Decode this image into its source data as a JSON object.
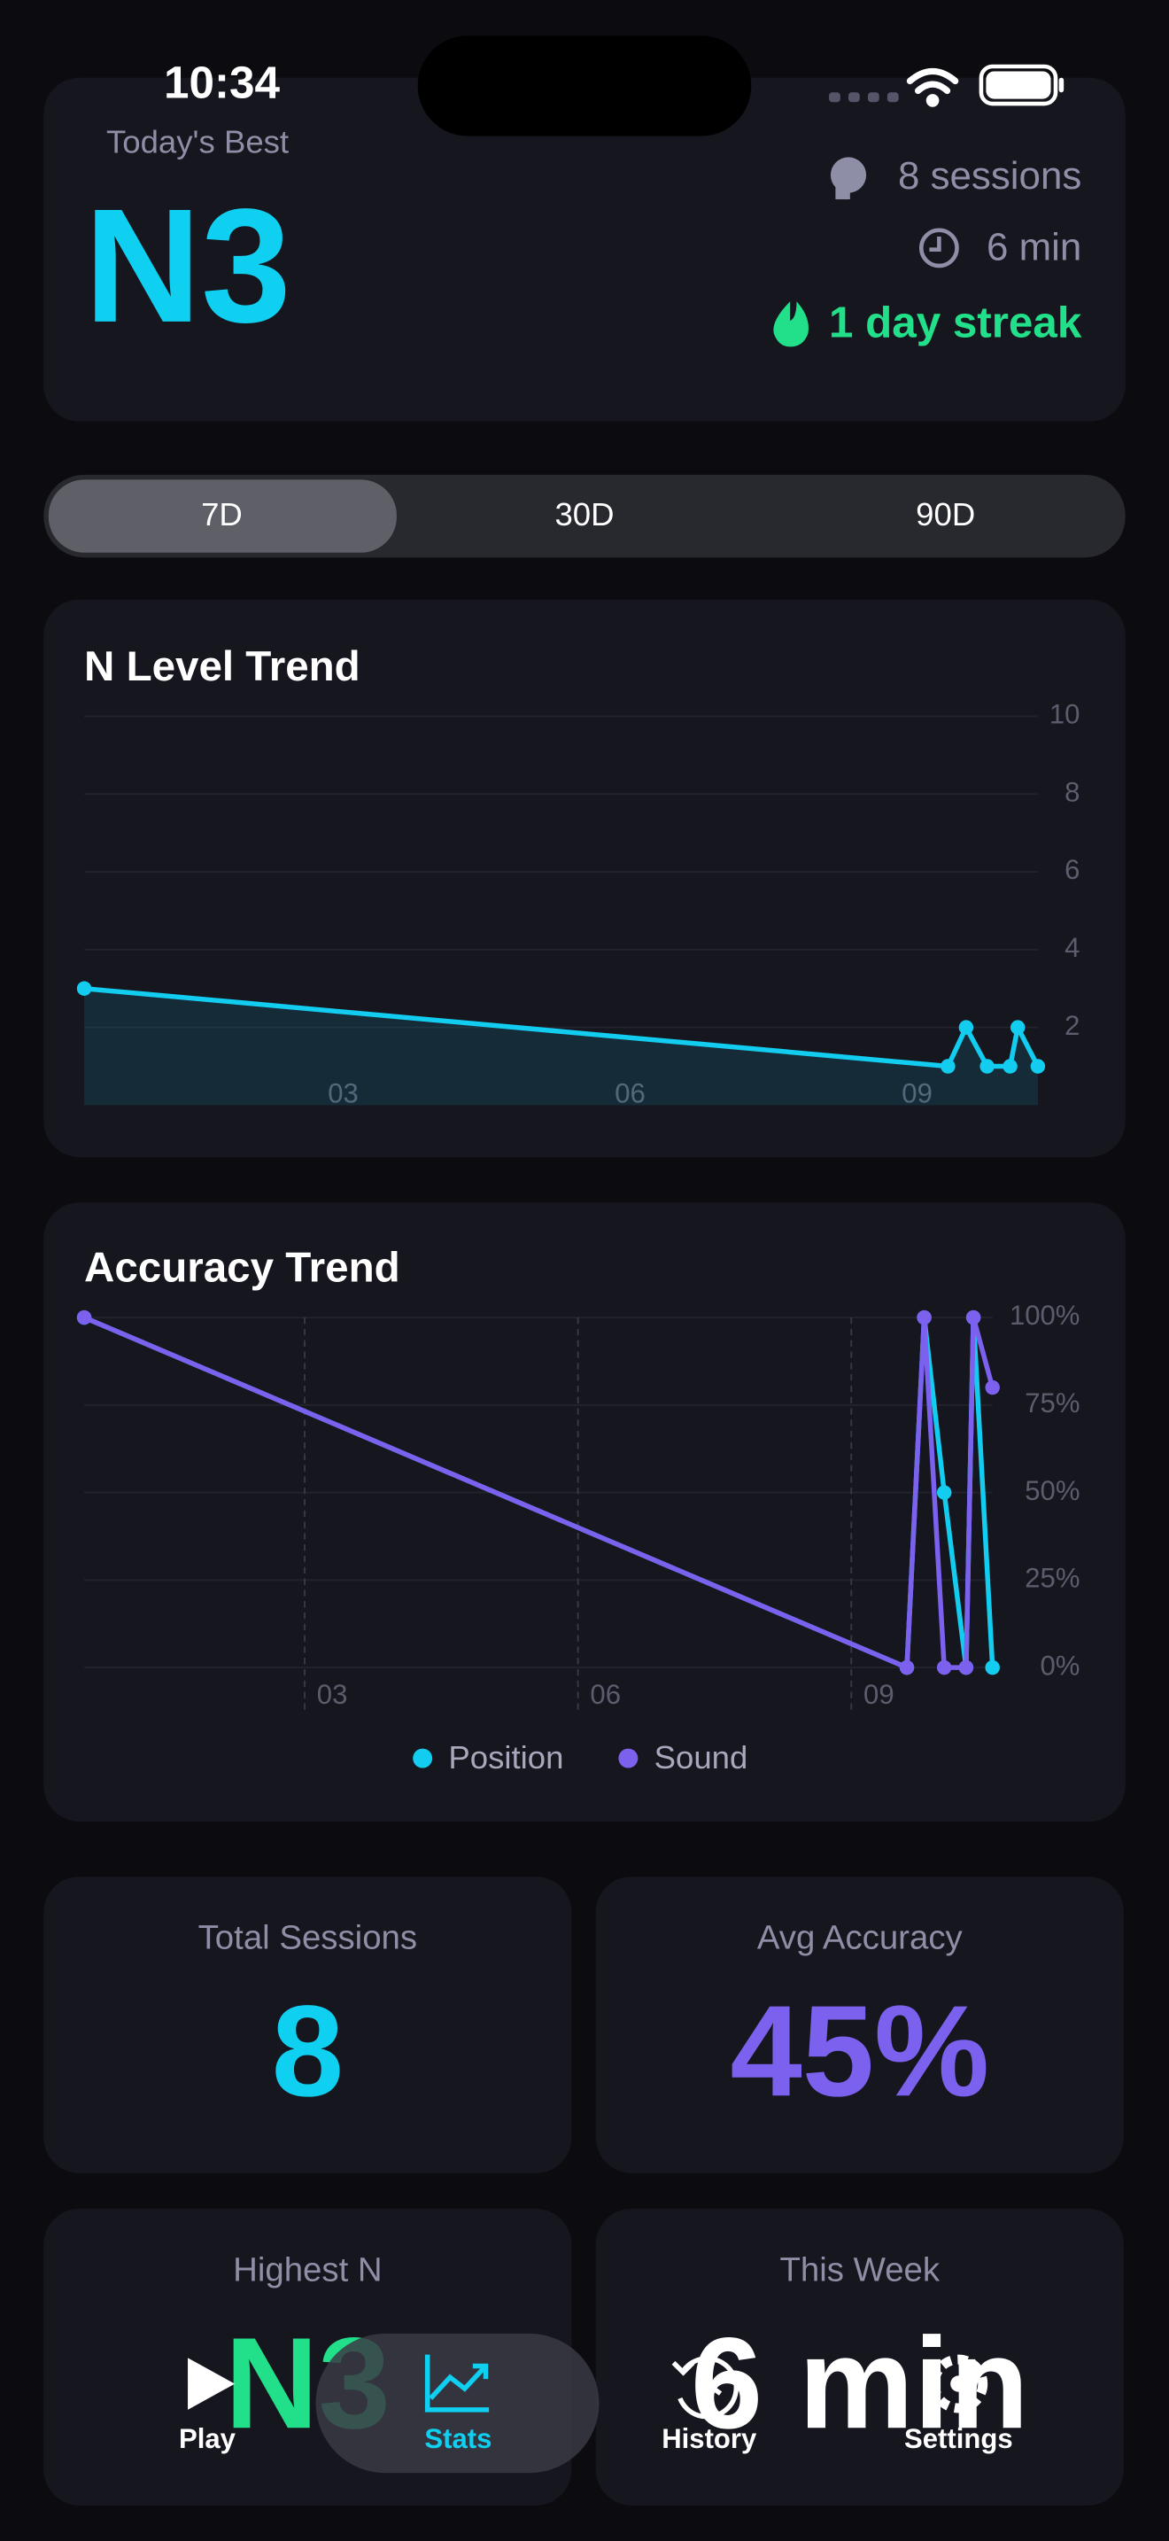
{
  "status_bar": {
    "time": "10:34"
  },
  "summary": {
    "label": "Today's Best",
    "best_level": "N3",
    "sessions": "8 sessions",
    "time": "6 min",
    "streak": "1 day streak"
  },
  "range_tabs": [
    "7D",
    "30D",
    "90D"
  ],
  "n_level_chart": {
    "type": "line",
    "title": "N Level Trend",
    "color": "#12cdef",
    "area": true,
    "x": [
      0.58,
      9.61,
      9.8,
      10.02,
      10.26,
      10.34,
      10.55
    ],
    "values": [
      3,
      1,
      2,
      1,
      1,
      2,
      1
    ],
    "xlim": [
      0.58,
      10.55
    ],
    "ylim": [
      0,
      10
    ],
    "xticks": [
      {
        "value": 3,
        "label": "03"
      },
      {
        "value": 6,
        "label": "06"
      },
      {
        "value": 9,
        "label": "09"
      }
    ],
    "yticks": [
      2,
      4,
      6,
      8,
      10
    ],
    "grid": true
  },
  "accuracy_chart": {
    "type": "line",
    "title": "Accuracy Trend",
    "x": [
      0.58,
      9.61,
      9.8,
      10.02,
      10.26,
      10.34,
      10.55
    ],
    "series": [
      {
        "name": "Position",
        "color": "#12cdef",
        "values": [
          100,
          0,
          100,
          50,
          0,
          100,
          0
        ]
      },
      {
        "name": "Sound",
        "color": "#7b61ee",
        "values": [
          100,
          0,
          100,
          0,
          0,
          100,
          80
        ]
      }
    ],
    "xlim": [
      0.58,
      10.55
    ],
    "ylim": [
      0,
      100
    ],
    "xticks": [
      {
        "value": 3,
        "label": "03"
      },
      {
        "value": 6,
        "label": "06"
      },
      {
        "value": 9,
        "label": "09"
      }
    ],
    "yticks": [
      {
        "value": 0,
        "label": "0%"
      },
      {
        "value": 25,
        "label": "25%"
      },
      {
        "value": 50,
        "label": "50%"
      },
      {
        "value": 75,
        "label": "75%"
      },
      {
        "value": 100,
        "label": "100%"
      }
    ],
    "grid": true,
    "legend": "bottom"
  },
  "stats": [
    {
      "label": "Total Sessions",
      "value": "8"
    },
    {
      "label": "Avg Accuracy",
      "value": "45%"
    },
    {
      "label": "Highest N",
      "value": "N3"
    },
    {
      "label": "This Week",
      "value": "6 min"
    }
  ],
  "tab_bar": [
    "Play",
    "Stats",
    "History",
    "Settings"
  ]
}
